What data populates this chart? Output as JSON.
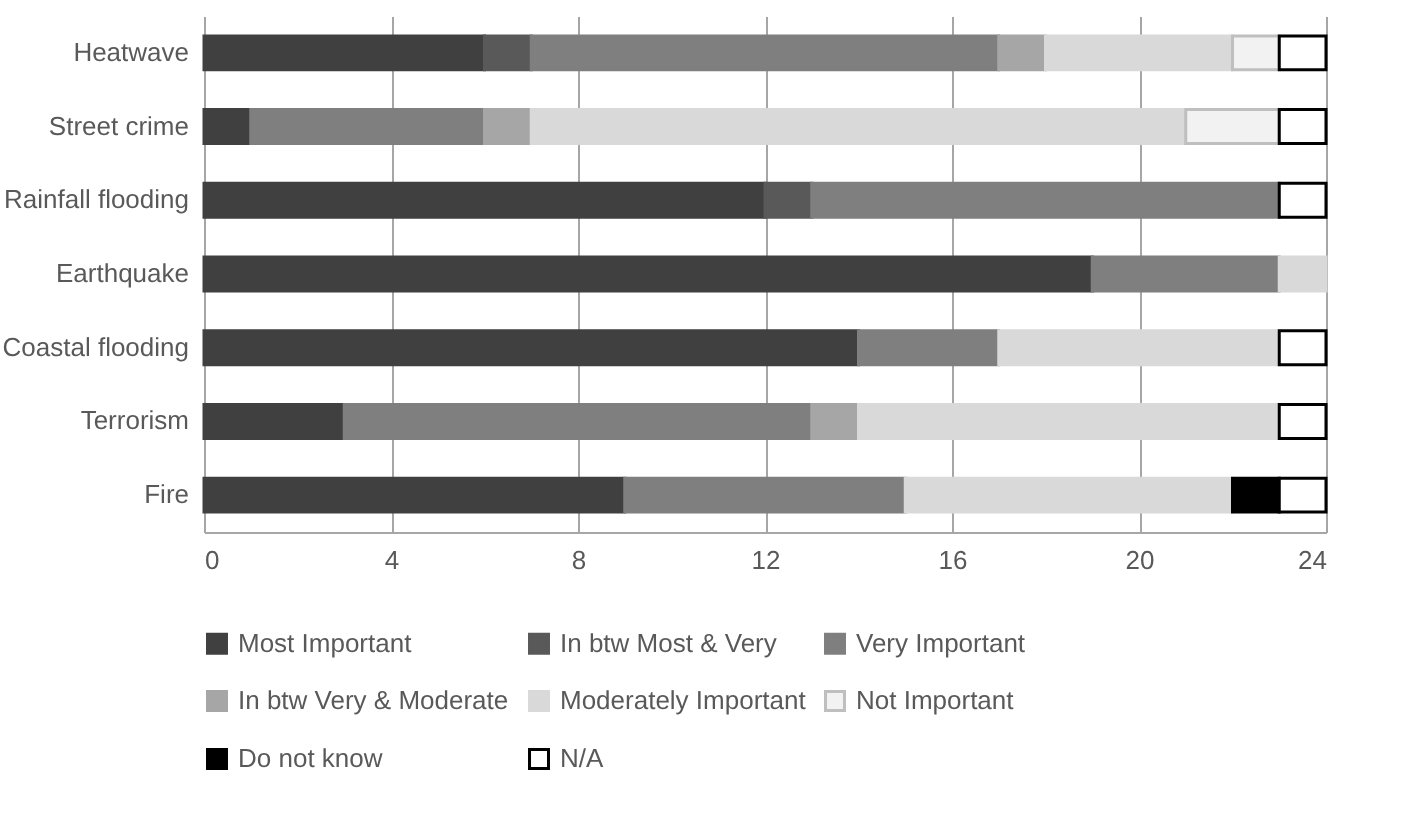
{
  "chart_data": {
    "type": "bar",
    "orientation": "horizontal",
    "stacked": true,
    "categories": [
      "Heatwave",
      "Street crime",
      "Rainfall flooding",
      "Earthquake",
      "Coastal flooding",
      "Terrorism",
      "Fire"
    ],
    "series": [
      {
        "name": "Most Important",
        "color": "#404040",
        "values": [
          6,
          1,
          12,
          19,
          14,
          3,
          9
        ]
      },
      {
        "name": "In btw Most & Very",
        "color": "#595959",
        "values": [
          1,
          null,
          1,
          null,
          null,
          null,
          null
        ]
      },
      {
        "name": "Very Important",
        "color": "#7f7f7f",
        "values": [
          10,
          5,
          10,
          4,
          3,
          10,
          6
        ]
      },
      {
        "name": "In btw Very & Moderate",
        "color": "#a6a6a6",
        "values": [
          1,
          1,
          null,
          null,
          null,
          1,
          null
        ]
      },
      {
        "name": "Moderately Important",
        "color": "#d9d9d9",
        "values": [
          4,
          14,
          null,
          1,
          6,
          9,
          7
        ]
      },
      {
        "name": "Not Important",
        "color": "#f2f2f2",
        "values": [
          1,
          2,
          null,
          null,
          null,
          null,
          null
        ]
      },
      {
        "name": "Do not know",
        "color": "#000000",
        "values": [
          null,
          null,
          null,
          null,
          null,
          null,
          1
        ]
      },
      {
        "name": "N/A",
        "color": "#ffffff",
        "values": [
          1,
          1,
          1,
          null,
          1,
          1,
          1
        ]
      }
    ],
    "xlim": [
      0,
      24
    ],
    "xticks": [
      0,
      4,
      8,
      12,
      16,
      20,
      24
    ],
    "grid": "x",
    "legend": "bottom"
  }
}
